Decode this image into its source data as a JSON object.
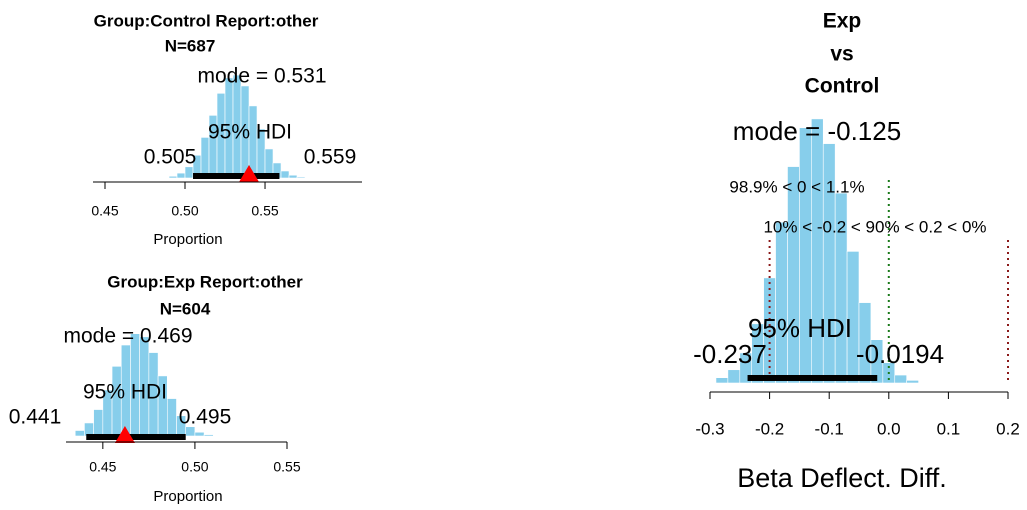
{
  "chart_data": [
    {
      "type": "histogram",
      "title": "Group:Control   Report:other",
      "subtitle": "N=687",
      "bins": [
        0.49,
        0.495,
        0.5,
        0.505,
        0.51,
        0.515,
        0.52,
        0.525,
        0.53,
        0.535,
        0.54,
        0.545,
        0.55,
        0.555,
        0.56,
        0.565,
        0.57,
        0.575
      ],
      "values": [
        0.5,
        1.4,
        3.2,
        6.5,
        11.6,
        17.9,
        24.2,
        28.6,
        29.4,
        26.3,
        20.6,
        14.0,
        8.3,
        4.3,
        2.0,
        0.8,
        0.3
      ],
      "color": "#87ceeb",
      "xlim": [
        0.4425,
        0.6106
      ],
      "ylim": [
        0,
        30
      ],
      "xticks": [
        0.45,
        {
          "value": 0.5,
          "label": "0.50"
        },
        0.55
      ],
      "xlabel": "Proportion",
      "mode": {
        "value": 0.531,
        "label": "mode = 0.531"
      },
      "hdi_label": "95% HDI",
      "hdi": [
        0.505,
        0.559
      ],
      "hdi_color": "#000000",
      "data_point": 0.54,
      "data_point_color": "#ff0000"
    },
    {
      "type": "histogram",
      "title": "Group:Exp   Report:other",
      "subtitle": "N=604",
      "bins": [
        0.435,
        0.44,
        0.445,
        0.45,
        0.455,
        0.46,
        0.465,
        0.47,
        0.475,
        0.48,
        0.485,
        0.49,
        0.495,
        0.5,
        0.505,
        0.51
      ],
      "values": [
        1.6,
        3.8,
        7.7,
        13.4,
        20.3,
        26.5,
        29.8,
        28.9,
        24.3,
        17.5,
        10.9,
        5.9,
        2.7,
        1.1,
        0.4
      ],
      "color": "#87ceeb",
      "xlim": [
        0.43,
        0.55
      ],
      "ylim": [
        0,
        30
      ],
      "xticks": [
        0.45,
        {
          "value": 0.5,
          "label": "0.50"
        },
        0.55
      ],
      "xlabel": "Proportion",
      "mode": {
        "value": 0.469,
        "label": "mode = 0.469"
      },
      "hdi_label": "95% HDI",
      "hdi": [
        0.441,
        0.495
      ],
      "hdi_color": "#000000",
      "data_point": 0.462,
      "data_point_color": "#ff0000"
    },
    {
      "type": "histogram",
      "title": [
        "Exp",
        "vs",
        "Control"
      ],
      "bins": [
        -0.29,
        -0.27,
        -0.25,
        -0.23,
        -0.21,
        -0.19,
        -0.17,
        -0.15,
        -0.13,
        -0.11,
        -0.09,
        -0.07,
        -0.05,
        -0.03,
        -0.01,
        0.01,
        0.03,
        0.05
      ],
      "values": [
        0.6,
        1.5,
        3.4,
        6.7,
        11.9,
        18.2,
        24.5,
        28.9,
        29.9,
        27.1,
        21.5,
        14.9,
        9.1,
        4.9,
        2.3,
        0.9,
        0.3
      ],
      "color": "#87ceeb",
      "xlim": [
        -0.3,
        0.2
      ],
      "ylim": [
        0,
        30
      ],
      "xticks": [
        -0.3,
        -0.2,
        -0.1,
        {
          "value": 0,
          "label": "0.0"
        },
        0.1,
        0.2
      ],
      "xlabel": "Beta Deflect. Diff.",
      "mode": {
        "value": -0.125,
        "label": "mode = -0.125"
      },
      "comp_value": 0,
      "comp_label": "98.9% < 0 < 1.1%",
      "comp_color": "#1a7a1a",
      "rope": [
        -0.2,
        0.2
      ],
      "rope_label": "10% < -0.2 < 90% < 0.2 < 0%",
      "rope_color": "#8b1a1a",
      "hdi_label": "95% HDI",
      "hdi": [
        -0.237,
        -0.0194
      ],
      "hdi_color": "#000000"
    }
  ]
}
